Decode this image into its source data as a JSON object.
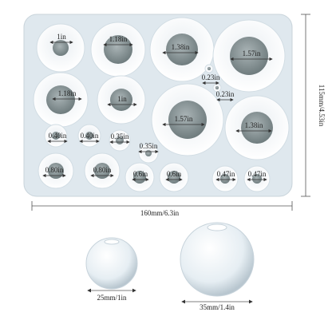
{
  "mold": {
    "labels": [
      "1in",
      "1.18in",
      "1.38in",
      "1.57in",
      "0.23in",
      "1.18in",
      "1in",
      "0.23in",
      "1.57in",
      "1.38in",
      "0.40in",
      "0.40in",
      "0.35in",
      "0.35in",
      "0.80in",
      "0.80in",
      "0.6in",
      "0.6in",
      "0.47in",
      "0.47in"
    ]
  },
  "dimensions": {
    "height": "115mm/4.53in",
    "width": "160mm/6.3in"
  },
  "spheres": [
    {
      "label": "25mm/1in"
    },
    {
      "label": "35mm/1.4in"
    }
  ]
}
